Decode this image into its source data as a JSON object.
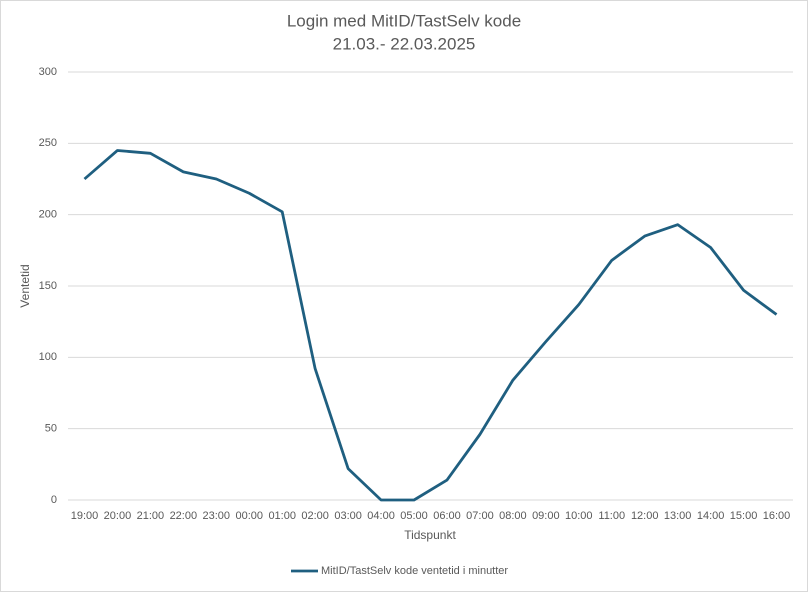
{
  "chart_data": {
    "type": "line",
    "title": "Login med MitID/TastSelv kode",
    "subtitle": "21.03.- 22.03.2025",
    "x_label": "Tidspunkt",
    "y_label": "Ventetid",
    "categories": [
      "19:00",
      "20:00",
      "21:00",
      "22:00",
      "23:00",
      "00:00",
      "01:00",
      "02:00",
      "03:00",
      "04:00",
      "05:00",
      "06:00",
      "07:00",
      "08:00",
      "09:00",
      "10:00",
      "11:00",
      "12:00",
      "13:00",
      "14:00",
      "15:00",
      "16:00"
    ],
    "series": [
      {
        "name": "MitID/TastSelv kode ventetid i minutter",
        "color": "#1f5f80",
        "values": [
          225,
          245,
          243,
          230,
          225,
          215,
          202,
          92,
          22,
          0,
          0,
          14,
          46,
          84,
          111,
          137,
          168,
          185,
          193,
          177,
          147,
          130
        ]
      }
    ],
    "ylim": [
      0,
      300
    ],
    "yticks": [
      0,
      50,
      100,
      150,
      200,
      250,
      300
    ],
    "grid": true,
    "legend": "bottom"
  }
}
